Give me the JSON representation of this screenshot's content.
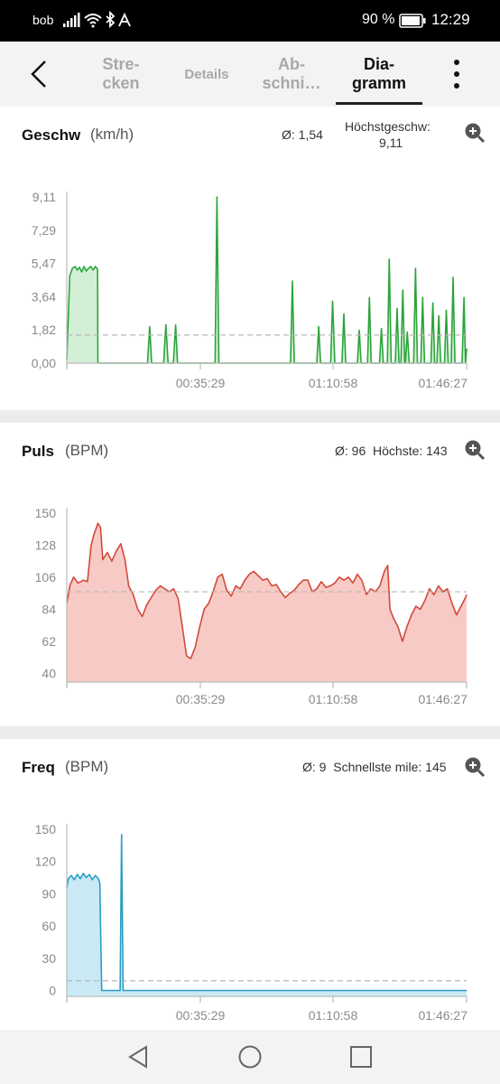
{
  "status_bar": {
    "carrier": "bob",
    "battery_percent": "90 %",
    "time": "12:29"
  },
  "app_bar": {
    "tabs": [
      {
        "label": "Stre-\ncken",
        "active": false
      },
      {
        "label": "Details",
        "active": false
      },
      {
        "label": "Ab-\nschni…",
        "active": false
      },
      {
        "label": "Dia-\ngramm",
        "active": true
      }
    ]
  },
  "cards": {
    "speed": {
      "title": "Geschw",
      "unit": "(km/h)",
      "avg": "Ø: 1,54",
      "max_label": "Höchstgeschw:",
      "max_value": "9,11"
    },
    "pulse": {
      "title": "Puls",
      "unit": "(BPM)",
      "stats": "Ø: 96  Höchste: 143"
    },
    "freq": {
      "title": "Freq",
      "unit": "(BPM)",
      "stats": "Ø: 9  Schnellste mile: 145"
    }
  },
  "chart_data": [
    {
      "type": "area",
      "title": "Geschw (km/h)",
      "color": "#2ba43a",
      "fill": "#d3efd5",
      "x_ticks": [
        "00:35:29",
        "01:10:58",
        "01:46:27"
      ],
      "y_ticks": [
        "9,11",
        "7,29",
        "5,47",
        "3,64",
        "1,82",
        "0,00"
      ],
      "y_tick_values": [
        9.11,
        7.29,
        5.47,
        3.64,
        1.82,
        0.0
      ],
      "ylim": [
        0,
        9.11
      ],
      "average": 1.54,
      "x_end_minutes": 106.5,
      "points": [
        [
          0,
          0.2
        ],
        [
          0.8,
          4.8
        ],
        [
          1.5,
          5.2
        ],
        [
          2.2,
          5.3
        ],
        [
          2.8,
          5.1
        ],
        [
          3.4,
          5.25
        ],
        [
          4,
          5.0
        ],
        [
          4.6,
          5.3
        ],
        [
          5.2,
          5.05
        ],
        [
          5.8,
          5.2
        ],
        [
          6.4,
          5.3
        ],
        [
          7,
          5.1
        ],
        [
          7.6,
          5.3
        ],
        [
          8.2,
          5.15
        ],
        [
          8.3,
          0
        ],
        [
          21.5,
          0
        ],
        [
          22.1,
          2.0
        ],
        [
          22.6,
          0
        ],
        [
          25.8,
          0
        ],
        [
          26.4,
          2.1
        ],
        [
          27,
          0
        ],
        [
          28.4,
          0
        ],
        [
          29,
          2.1
        ],
        [
          29.5,
          0
        ],
        [
          39.5,
          0
        ],
        [
          40.0,
          9.11
        ],
        [
          40.5,
          0
        ],
        [
          59.6,
          0
        ],
        [
          60.1,
          4.5
        ],
        [
          60.6,
          0
        ],
        [
          66.6,
          0
        ],
        [
          67.1,
          2.0
        ],
        [
          67.6,
          0
        ],
        [
          70.3,
          0
        ],
        [
          70.8,
          3.4
        ],
        [
          71.4,
          0
        ],
        [
          73.3,
          0
        ],
        [
          73.8,
          2.7
        ],
        [
          74.3,
          0
        ],
        [
          77.4,
          0
        ],
        [
          77.9,
          1.8
        ],
        [
          78.4,
          0
        ],
        [
          80.1,
          0
        ],
        [
          80.6,
          3.6
        ],
        [
          81.1,
          0
        ],
        [
          83.3,
          0
        ],
        [
          83.8,
          1.9
        ],
        [
          84.3,
          0
        ],
        [
          85.4,
          0
        ],
        [
          85.9,
          5.7
        ],
        [
          86.4,
          0
        ],
        [
          87.5,
          0
        ],
        [
          88.0,
          3.0
        ],
        [
          88.5,
          0
        ],
        [
          89.0,
          0
        ],
        [
          89.5,
          4.0
        ],
        [
          90.0,
          0
        ],
        [
          90.2,
          0
        ],
        [
          90.7,
          1.7
        ],
        [
          91.2,
          0
        ],
        [
          92.4,
          0
        ],
        [
          92.9,
          5.2
        ],
        [
          93.4,
          0
        ],
        [
          94.3,
          0
        ],
        [
          94.8,
          3.6
        ],
        [
          95.3,
          0
        ],
        [
          97.0,
          0
        ],
        [
          97.5,
          3.3
        ],
        [
          98.0,
          0
        ],
        [
          98.6,
          0
        ],
        [
          99.1,
          2.6
        ],
        [
          99.6,
          0
        ],
        [
          100.6,
          0
        ],
        [
          101.1,
          2.9
        ],
        [
          101.6,
          0
        ],
        [
          102.4,
          0
        ],
        [
          102.9,
          4.7
        ],
        [
          103.4,
          0
        ],
        [
          105.3,
          0
        ],
        [
          105.8,
          3.6
        ],
        [
          106.2,
          0
        ],
        [
          106.5,
          0.8
        ]
      ]
    },
    {
      "type": "area",
      "title": "Puls (BPM)",
      "color": "#d24a3a",
      "fill": "#f7cac5",
      "x_ticks": [
        "00:35:29",
        "01:10:58",
        "01:46:27"
      ],
      "y_ticks": [
        "150",
        "128",
        "106",
        "84",
        "62",
        "40"
      ],
      "y_tick_values": [
        150,
        128,
        106,
        84,
        62,
        40
      ],
      "ylim": [
        34,
        150
      ],
      "average": 96,
      "x_end_minutes": 106.5,
      "points": [
        [
          0,
          88
        ],
        [
          0.8,
          100
        ],
        [
          1.8,
          106
        ],
        [
          3,
          102
        ],
        [
          4.5,
          104
        ],
        [
          5.5,
          103
        ],
        [
          6.5,
          128
        ],
        [
          7.2,
          135
        ],
        [
          8.3,
          143
        ],
        [
          9.0,
          140
        ],
        [
          9.6,
          118
        ],
        [
          10.8,
          123
        ],
        [
          12.0,
          117
        ],
        [
          13.2,
          124
        ],
        [
          14.4,
          129
        ],
        [
          15.5,
          118
        ],
        [
          16.5,
          100
        ],
        [
          17.7,
          94
        ],
        [
          18.9,
          84
        ],
        [
          20.1,
          79
        ],
        [
          21.3,
          87
        ],
        [
          22.5,
          92
        ],
        [
          23.7,
          97
        ],
        [
          24.9,
          100
        ],
        [
          26.1,
          98
        ],
        [
          27.3,
          96
        ],
        [
          28.5,
          98
        ],
        [
          29.7,
          91
        ],
        [
          30.9,
          70
        ],
        [
          31.9,
          52
        ],
        [
          33,
          50
        ],
        [
          34.2,
          58
        ],
        [
          35.4,
          72
        ],
        [
          36.6,
          84
        ],
        [
          37.8,
          88
        ],
        [
          39,
          96
        ],
        [
          40.2,
          106
        ],
        [
          41.4,
          108
        ],
        [
          42.6,
          97
        ],
        [
          43.8,
          93
        ],
        [
          45,
          100
        ],
        [
          46.2,
          98
        ],
        [
          47.4,
          104
        ],
        [
          48.6,
          108
        ],
        [
          49.8,
          110
        ],
        [
          51,
          107
        ],
        [
          52.2,
          104
        ],
        [
          53.4,
          105
        ],
        [
          54.6,
          100
        ],
        [
          55.8,
          101
        ],
        [
          57,
          96
        ],
        [
          58.2,
          92
        ],
        [
          59.4,
          95
        ],
        [
          60.6,
          97
        ],
        [
          61.8,
          101
        ],
        [
          63,
          104
        ],
        [
          64.2,
          104
        ],
        [
          65.4,
          96
        ],
        [
          66.6,
          98
        ],
        [
          67.8,
          103
        ],
        [
          69,
          99
        ],
        [
          70.2,
          100
        ],
        [
          71.4,
          102
        ],
        [
          72.6,
          106
        ],
        [
          73.8,
          104
        ],
        [
          75,
          106
        ],
        [
          76.2,
          102
        ],
        [
          77.4,
          108
        ],
        [
          78.6,
          104
        ],
        [
          79.8,
          94
        ],
        [
          81,
          98
        ],
        [
          82.2,
          96
        ],
        [
          83.4,
          100
        ],
        [
          84.6,
          110
        ],
        [
          85.5,
          114
        ],
        [
          86.1,
          84
        ],
        [
          87,
          78
        ],
        [
          88.2,
          72
        ],
        [
          89.4,
          62
        ],
        [
          90.6,
          72
        ],
        [
          91.8,
          80
        ],
        [
          93,
          86
        ],
        [
          94.2,
          84
        ],
        [
          95.4,
          90
        ],
        [
          96.6,
          98
        ],
        [
          97.8,
          94
        ],
        [
          99,
          100
        ],
        [
          100.2,
          96
        ],
        [
          101.4,
          98
        ],
        [
          102.6,
          88
        ],
        [
          103.8,
          80
        ],
        [
          105,
          86
        ],
        [
          106.2,
          92
        ],
        [
          106.5,
          94
        ]
      ]
    },
    {
      "type": "area",
      "title": "Freq (BPM)",
      "color": "#2a9ec2",
      "fill": "#c9eaf5",
      "x_ticks": [
        "00:35:29",
        "01:10:58",
        "01:46:27"
      ],
      "y_ticks": [
        "150",
        "120",
        "90",
        "60",
        "30",
        "0"
      ],
      "y_tick_values": [
        150,
        120,
        90,
        60,
        30,
        0
      ],
      "ylim": [
        -5.5,
        150
      ],
      "average": 9,
      "x_end_minutes": 106.5,
      "points": [
        [
          0,
          95
        ],
        [
          0.4,
          104
        ],
        [
          1.2,
          107
        ],
        [
          2,
          103
        ],
        [
          2.8,
          108
        ],
        [
          3.6,
          104
        ],
        [
          4.4,
          109
        ],
        [
          5.2,
          105
        ],
        [
          6,
          108
        ],
        [
          6.8,
          103
        ],
        [
          7.6,
          107
        ],
        [
          8.4,
          104
        ],
        [
          8.8,
          100
        ],
        [
          9.3,
          0
        ],
        [
          14.2,
          0
        ],
        [
          14.6,
          145
        ],
        [
          15.0,
          0
        ],
        [
          106.5,
          0
        ]
      ]
    }
  ]
}
